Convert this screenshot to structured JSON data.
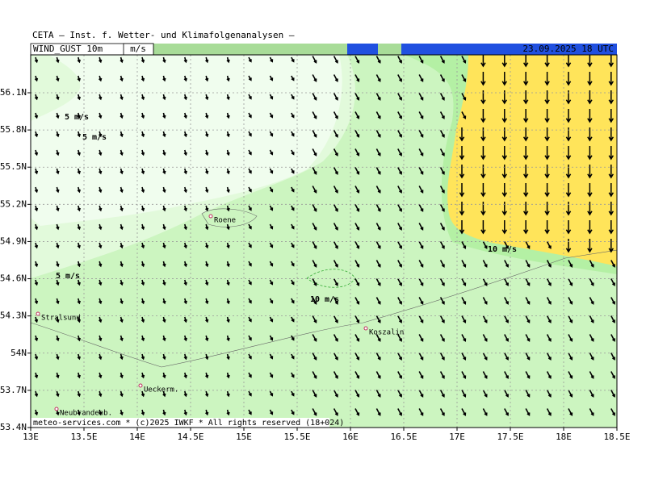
{
  "header": {
    "title": "CETA – Inst. f. Wetter- und Klimafolgenanalysen –",
    "parameter": "WIND_GUST 10m",
    "unit": "m/s",
    "valid_time": "23.09.2025 18 UTC"
  },
  "map": {
    "x_axis_labels": [
      "13E",
      "13.5E",
      "14E",
      "14.5E",
      "15E",
      "15.5E",
      "16E",
      "16.5E",
      "17E",
      "17.5E",
      "18E",
      "18.5E"
    ],
    "y_axis_labels": [
      "56.1N",
      "55.8N",
      "55.5N",
      "55.2N",
      "54.9N",
      "54.6N",
      "54.3N",
      "54N",
      "53.7N",
      "53.4N"
    ],
    "places": [
      "Roene",
      "Stralsund",
      "Koszalin",
      "Ueckerm.",
      "Neubrandenb."
    ],
    "contour_labels": [
      "5 m/s",
      "5 m/s",
      "5 m/s",
      "10 m/s",
      "10 m/s"
    ]
  },
  "footer": "meteo-services.com * (c)2025 IWKF * All rights reserved (18+024)"
}
